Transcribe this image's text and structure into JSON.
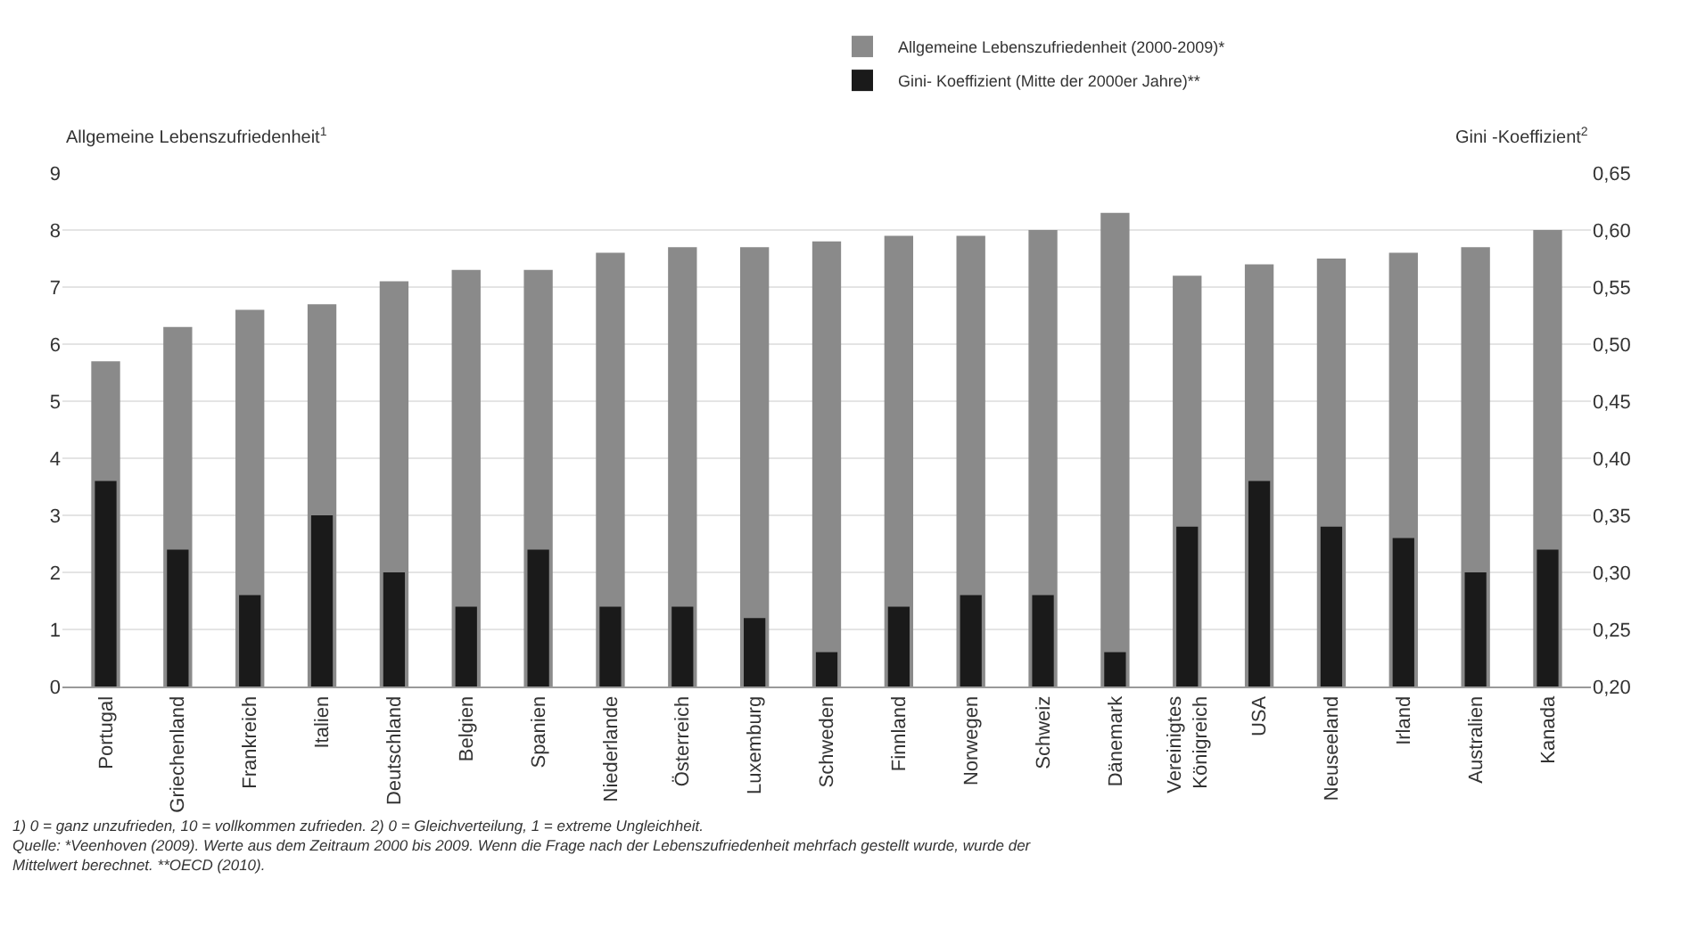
{
  "chart_data": {
    "type": "bar",
    "categories": [
      "Portugal",
      "Griechenland",
      "Frankreich",
      "Italien",
      "Deutschland",
      "Belgien",
      "Spanien",
      "Niederlande",
      "Österreich",
      "Luxemburg",
      "Schweden",
      "Finnland",
      "Norwegen",
      "Schweiz",
      "Dänemark",
      "Vereinigtes\nKönigreich",
      "USA",
      "Neuseeland",
      "Irland",
      "Australien",
      "Kanada"
    ],
    "series": [
      {
        "name": "Allgemeine Lebenszufriedenheit (2000-2009)*",
        "color": "#8a8a8a",
        "values": [
          5.7,
          6.3,
          6.6,
          6.7,
          7.1,
          7.3,
          7.3,
          7.6,
          7.7,
          7.7,
          7.8,
          7.9,
          7.9,
          8.0,
          8.3,
          7.2,
          7.4,
          7.5,
          7.6,
          7.7,
          8.0
        ]
      },
      {
        "name": "Gini- Koeffizient (Mitte der 2000er Jahre)**",
        "color": "#1a1a1a",
        "axis": "y2",
        "values": [
          0.38,
          0.32,
          0.28,
          0.35,
          0.3,
          0.27,
          0.32,
          0.27,
          0.27,
          0.26,
          0.23,
          0.27,
          0.28,
          0.28,
          0.23,
          0.34,
          0.38,
          0.34,
          0.33,
          0.3,
          0.32
        ]
      }
    ],
    "ylabel": "Allgemeine Lebenszufriedenheit$^{1}$",
    "y2label": "Gini -Koeffizient$^{2}$",
    "ylim": [
      0,
      9
    ],
    "yticks": [
      0,
      1,
      2,
      3,
      4,
      5,
      6,
      7,
      8,
      9
    ],
    "y2lim": [
      0.2,
      0.65
    ],
    "y2ticks": [
      {
        "value": 0.2,
        "label": "0,20"
      },
      {
        "value": 0.25,
        "label": "0,25"
      },
      {
        "value": 0.3,
        "label": "0,30"
      },
      {
        "value": 0.35,
        "label": "0,35"
      },
      {
        "value": 0.4,
        "label": "0,40"
      },
      {
        "value": 0.45,
        "label": "0,45"
      },
      {
        "value": 0.5,
        "label": "0,50"
      },
      {
        "value": 0.55,
        "label": "0,55"
      },
      {
        "value": 0.6,
        "label": "0,60"
      },
      {
        "value": 0.65,
        "label": "0,65"
      }
    ],
    "grid": "y",
    "legend": "top",
    "annotations": [
      "1) 0 = ganz unzufrieden, 10 = vollkommen zufrieden. 2) 0 = Gleichverteilung, 1 = extreme Ungleichheit.",
      "Quelle: *Veenhoven (2009). Werte aus dem Zeitraum 2000 bis 2009. Wenn die Frage nach der Lebenszufriedenheit mehrfach gestellt wurde, wurde der\nMittelwert berechnet. **OECD (2010)."
    ]
  }
}
